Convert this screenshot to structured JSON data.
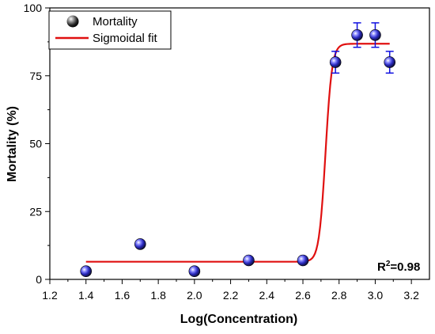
{
  "chart_data": {
    "type": "scatter",
    "xlabel": "Log(Concentration)",
    "ylabel": "Mortality (%)",
    "xlim": [
      1.2,
      3.3
    ],
    "ylim": [
      0,
      100
    ],
    "x_ticks": [
      "1.2",
      "1.4",
      "1.6",
      "1.8",
      "2.0",
      "2.2",
      "2.4",
      "2.6",
      "2.8",
      "3.0",
      "3.2"
    ],
    "y_ticks": [
      "0",
      "25",
      "50",
      "75",
      "100"
    ],
    "grid": false,
    "legend_position": "top-left",
    "series": [
      {
        "name": "Mortality",
        "kind": "points-with-error-bars",
        "points": [
          {
            "x": 1.4,
            "y": 3,
            "err": 0
          },
          {
            "x": 1.7,
            "y": 13,
            "err": 0
          },
          {
            "x": 2.0,
            "y": 3,
            "err": 0
          },
          {
            "x": 2.3,
            "y": 7,
            "err": 0
          },
          {
            "x": 2.6,
            "y": 7,
            "err": 0
          },
          {
            "x": 2.78,
            "y": 80,
            "err": 4
          },
          {
            "x": 2.9,
            "y": 90,
            "err": 4.5
          },
          {
            "x": 3.0,
            "y": 90,
            "err": 4.5
          },
          {
            "x": 3.08,
            "y": 80,
            "err": 4
          }
        ]
      },
      {
        "name": "Sigmoidal fit",
        "kind": "sigmoid-curve",
        "x_range": [
          1.4,
          3.08
        ],
        "bottom": 6.5,
        "top": 86.8,
        "x0": 2.725,
        "dx": 0.018
      }
    ],
    "annotation": {
      "prefix": "R",
      "sup": "2",
      "suffix": "=0.98"
    }
  },
  "colors": {
    "marker_fill": "#1a1a1a",
    "marker_highlight": "#4a4ad8",
    "error_bar": "#1010e0",
    "fit_line": "#e01010",
    "axis": "#000000"
  }
}
